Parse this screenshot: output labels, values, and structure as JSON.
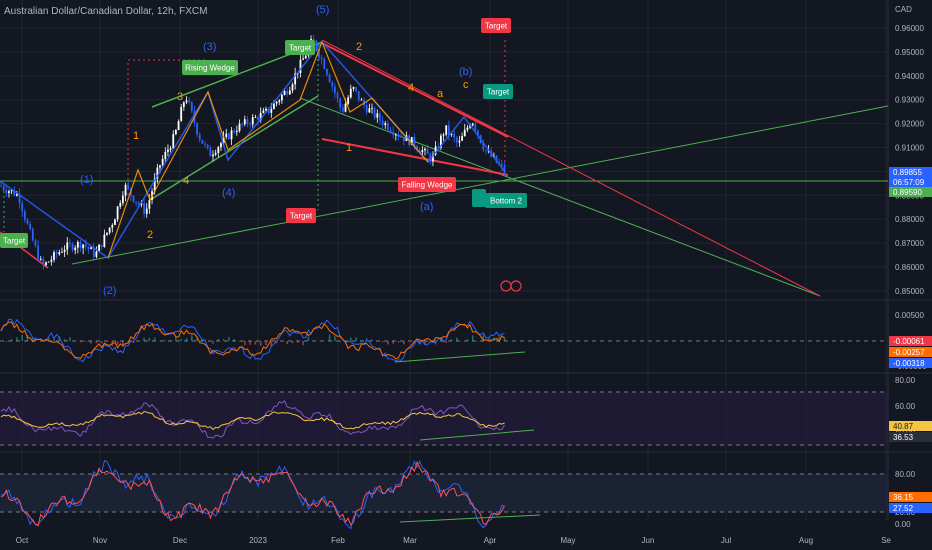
{
  "title": "Australian Dollar/Canadian Dollar, 12h, FXCM",
  "currency": "CAD",
  "colors": {
    "bg": "#131722",
    "grid": "#1f2430",
    "up": "#ffffff",
    "down": "#2962ff",
    "wedge_up": "#4caf50",
    "wedge_down": "#f23645",
    "wave_blue": "#2962ff",
    "wave_orange": "#ff9800",
    "macd": "#2962ff",
    "signal": "#ff6d00",
    "rsi": "#7e57c2",
    "rsi_ma": "#f5c542",
    "stoch_k": "#2962ff",
    "stoch_d": "#ff5252"
  },
  "chart_data": [
    {
      "type": "candlestick",
      "symbol": "AUDCAD",
      "timeframe": "12h",
      "x_labels": [
        "Oct",
        "Nov",
        "Dec",
        "2023",
        "Feb",
        "Mar",
        "Apr",
        "May",
        "Jun",
        "Jul",
        "Aug",
        "Se"
      ],
      "y_ticks": [
        "0.96000",
        "0.95000",
        "0.94000",
        "0.93000",
        "0.92000",
        "0.91000",
        "0.90000",
        "0.89000",
        "0.88000",
        "0.87000",
        "0.86000",
        "0.85000"
      ],
      "ylim": [
        0.846,
        0.965
      ],
      "close_path": [
        {
          "x": "Sep 26",
          "y": 0.894
        },
        {
          "x": "Oct 3",
          "y": 0.89
        },
        {
          "x": "Oct 7",
          "y": 0.875
        },
        {
          "x": "Oct 12",
          "y": 0.86
        },
        {
          "x": "Oct 20",
          "y": 0.868
        },
        {
          "x": "Oct 27",
          "y": 0.87
        },
        {
          "x": "Nov 1",
          "y": 0.865
        },
        {
          "x": "Nov 8",
          "y": 0.88
        },
        {
          "x": "Nov 12",
          "y": 0.894
        },
        {
          "x": "Nov 16",
          "y": 0.888
        },
        {
          "x": "Nov 20",
          "y": 0.883
        },
        {
          "x": "Nov 25",
          "y": 0.902
        },
        {
          "x": "Dec 1",
          "y": 0.915
        },
        {
          "x": "Dec 5",
          "y": 0.932
        },
        {
          "x": "Dec 10",
          "y": 0.915
        },
        {
          "x": "Dec 14",
          "y": 0.907
        },
        {
          "x": "Dec 24",
          "y": 0.918
        },
        {
          "x": "Jan 5",
          "y": 0.925
        },
        {
          "x": "Jan 13",
          "y": 0.935
        },
        {
          "x": "Jan 22",
          "y": 0.955
        },
        {
          "x": "Jan 27",
          "y": 0.943
        },
        {
          "x": "Feb 2",
          "y": 0.925
        },
        {
          "x": "Feb 6",
          "y": 0.935
        },
        {
          "x": "Feb 10",
          "y": 0.928
        },
        {
          "x": "Feb 17",
          "y": 0.921
        },
        {
          "x": "Feb 24",
          "y": 0.915
        },
        {
          "x": "Mar 1",
          "y": 0.912
        },
        {
          "x": "Mar 8",
          "y": 0.905
        },
        {
          "x": "Mar 13",
          "y": 0.918
        },
        {
          "x": "Mar 18",
          "y": 0.911
        },
        {
          "x": "Mar 23",
          "y": 0.922
        },
        {
          "x": "Mar 28",
          "y": 0.909
        },
        {
          "x": "Apr 2",
          "y": 0.903
        },
        {
          "x": "Apr 5",
          "y": 0.899
        }
      ],
      "price_labels": [
        "0.89855",
        "06:57:09",
        "0.89590"
      ],
      "annotations": {
        "patterns": [
          "Rising Wedge",
          "Falling Wedge"
        ],
        "targets": [
          "Target",
          "Target",
          "Target",
          "Target",
          "Target"
        ],
        "bottoms": [
          "Bottom 2"
        ],
        "waves_blue": [
          "(1)",
          "(2)",
          "(3)",
          "(4)",
          "(5)",
          "(a)",
          "(b)"
        ],
        "waves_orange": [
          "1",
          "2",
          "3",
          "4",
          "1",
          "2",
          "4",
          "a",
          "c"
        ]
      }
    },
    {
      "type": "line",
      "indicator": "MACD",
      "y_ticks": [
        "0.00500",
        "0.00000",
        "-0.00500"
      ],
      "value_labels": [
        "-0.00061",
        "-0.00257",
        "-0.00318"
      ]
    },
    {
      "type": "line",
      "indicator": "RSI",
      "y_ticks": [
        "80.00",
        "60.00",
        "40.00"
      ],
      "value_labels": [
        "40.87",
        "36.53"
      ]
    },
    {
      "type": "line",
      "indicator": "Stochastic",
      "y_ticks": [
        "80.00",
        "20.00",
        "0.00"
      ],
      "value_labels": [
        "36.15",
        "27.52"
      ]
    }
  ]
}
